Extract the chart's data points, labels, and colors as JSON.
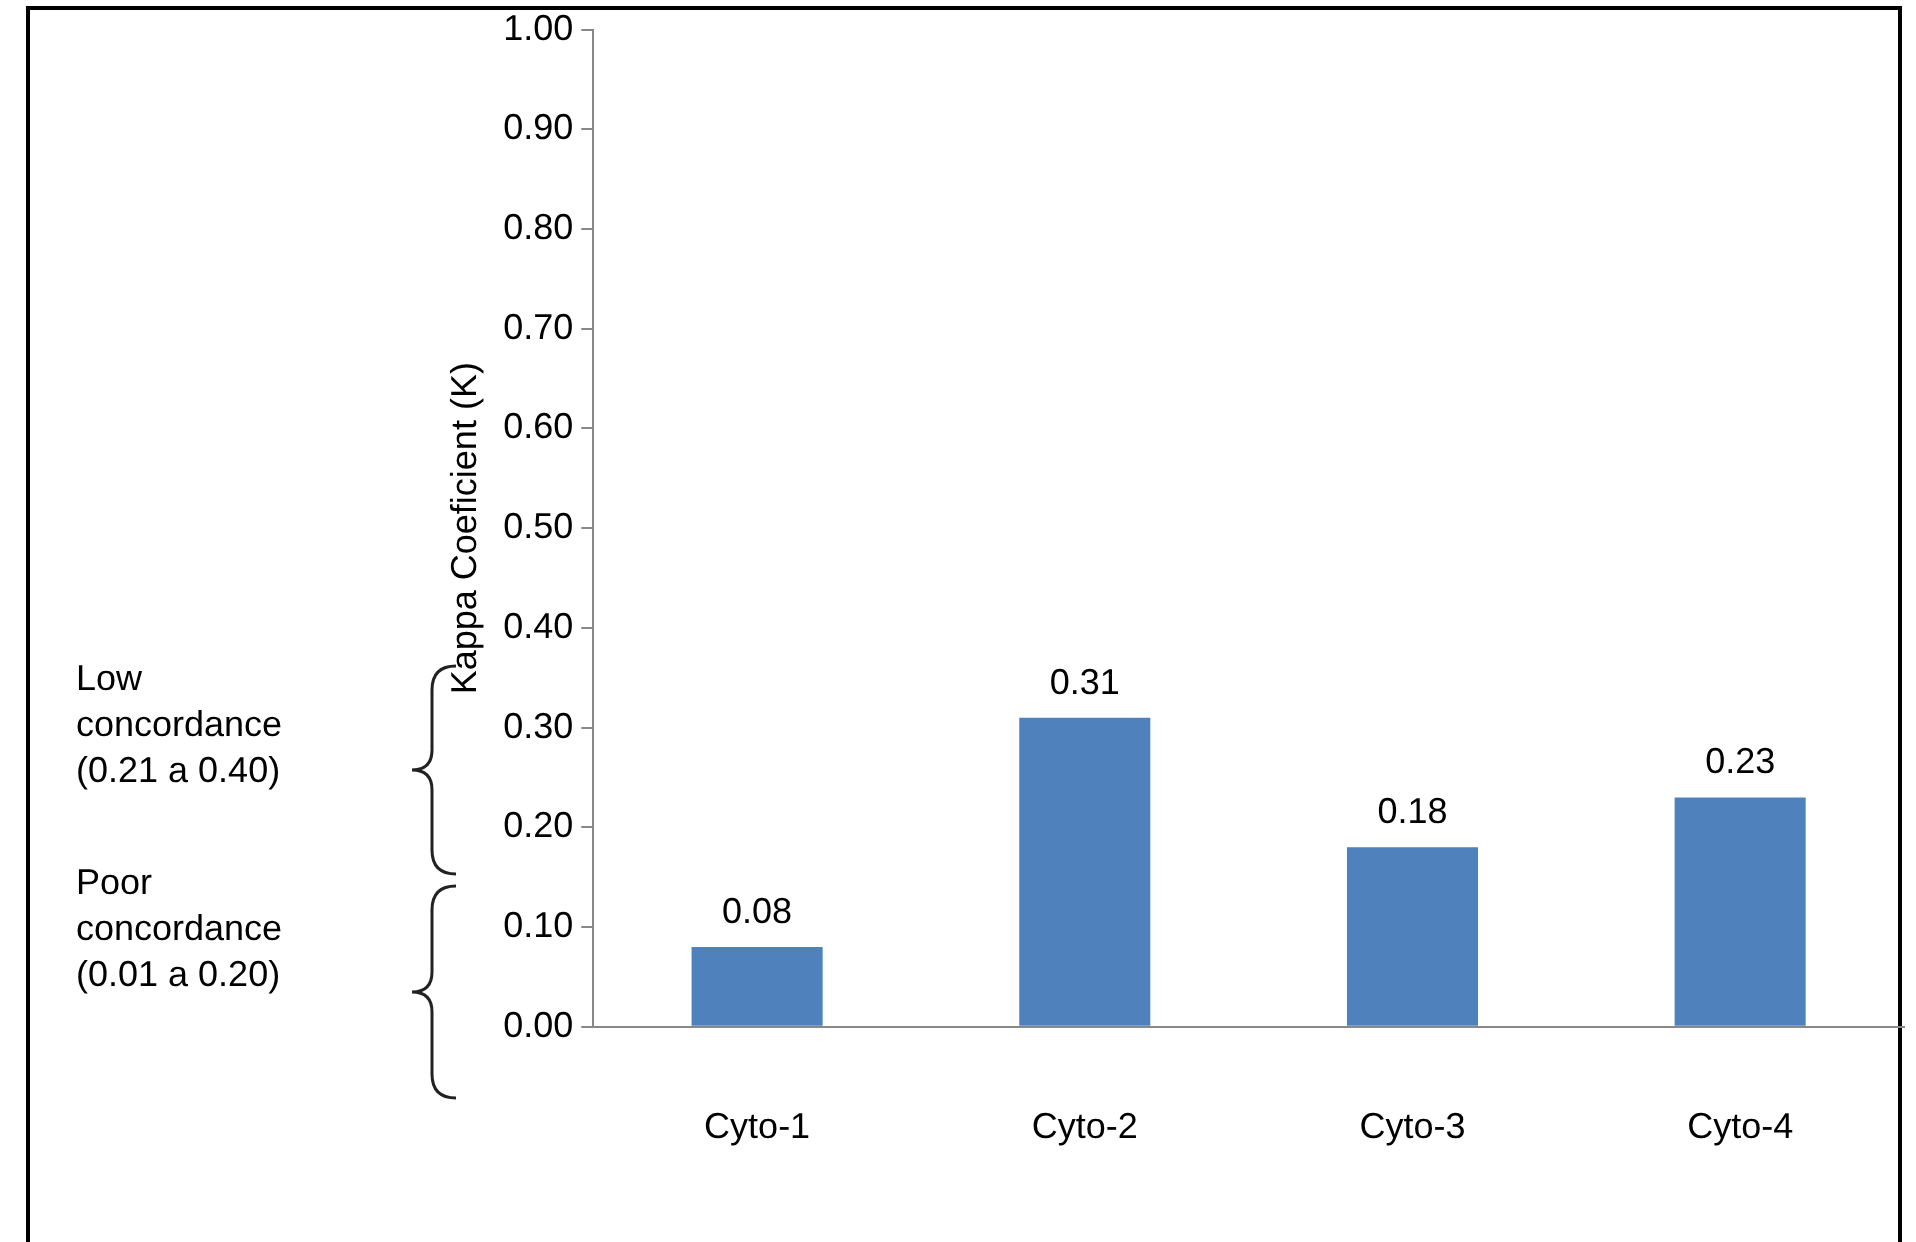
{
  "chart_data": {
    "type": "bar",
    "ylabel": "Kappa Coeficient (K)",
    "categories": [
      "Cyto-1",
      "Cyto-2",
      "Cyto-3",
      "Cyto-4"
    ],
    "values": [
      0.08,
      0.31,
      0.18,
      0.23
    ],
    "color": "#4f81bd",
    "ylim": [
      0,
      1
    ],
    "yticks": [
      {
        "value": 0,
        "label": "0.00"
      },
      {
        "value": 0.1,
        "label": "0.10"
      },
      {
        "value": 0.2,
        "label": "0.20"
      },
      {
        "value": 0.3,
        "label": "0.30"
      },
      {
        "value": 0.4,
        "label": "0.40"
      },
      {
        "value": 0.5,
        "label": "0.50"
      },
      {
        "value": 0.6,
        "label": "0.60"
      },
      {
        "value": 0.7,
        "label": "0.70"
      },
      {
        "value": 0.8,
        "label": "0.80"
      },
      {
        "value": 0.9,
        "label": "0.90"
      },
      {
        "value": 1,
        "label": "1.00"
      }
    ],
    "data_labels": true,
    "grid": false,
    "legend": false,
    "annotations": [
      "Low concordance (0.21 a 0.40)",
      "Poor concordance (0.01 a 0.20)"
    ]
  }
}
